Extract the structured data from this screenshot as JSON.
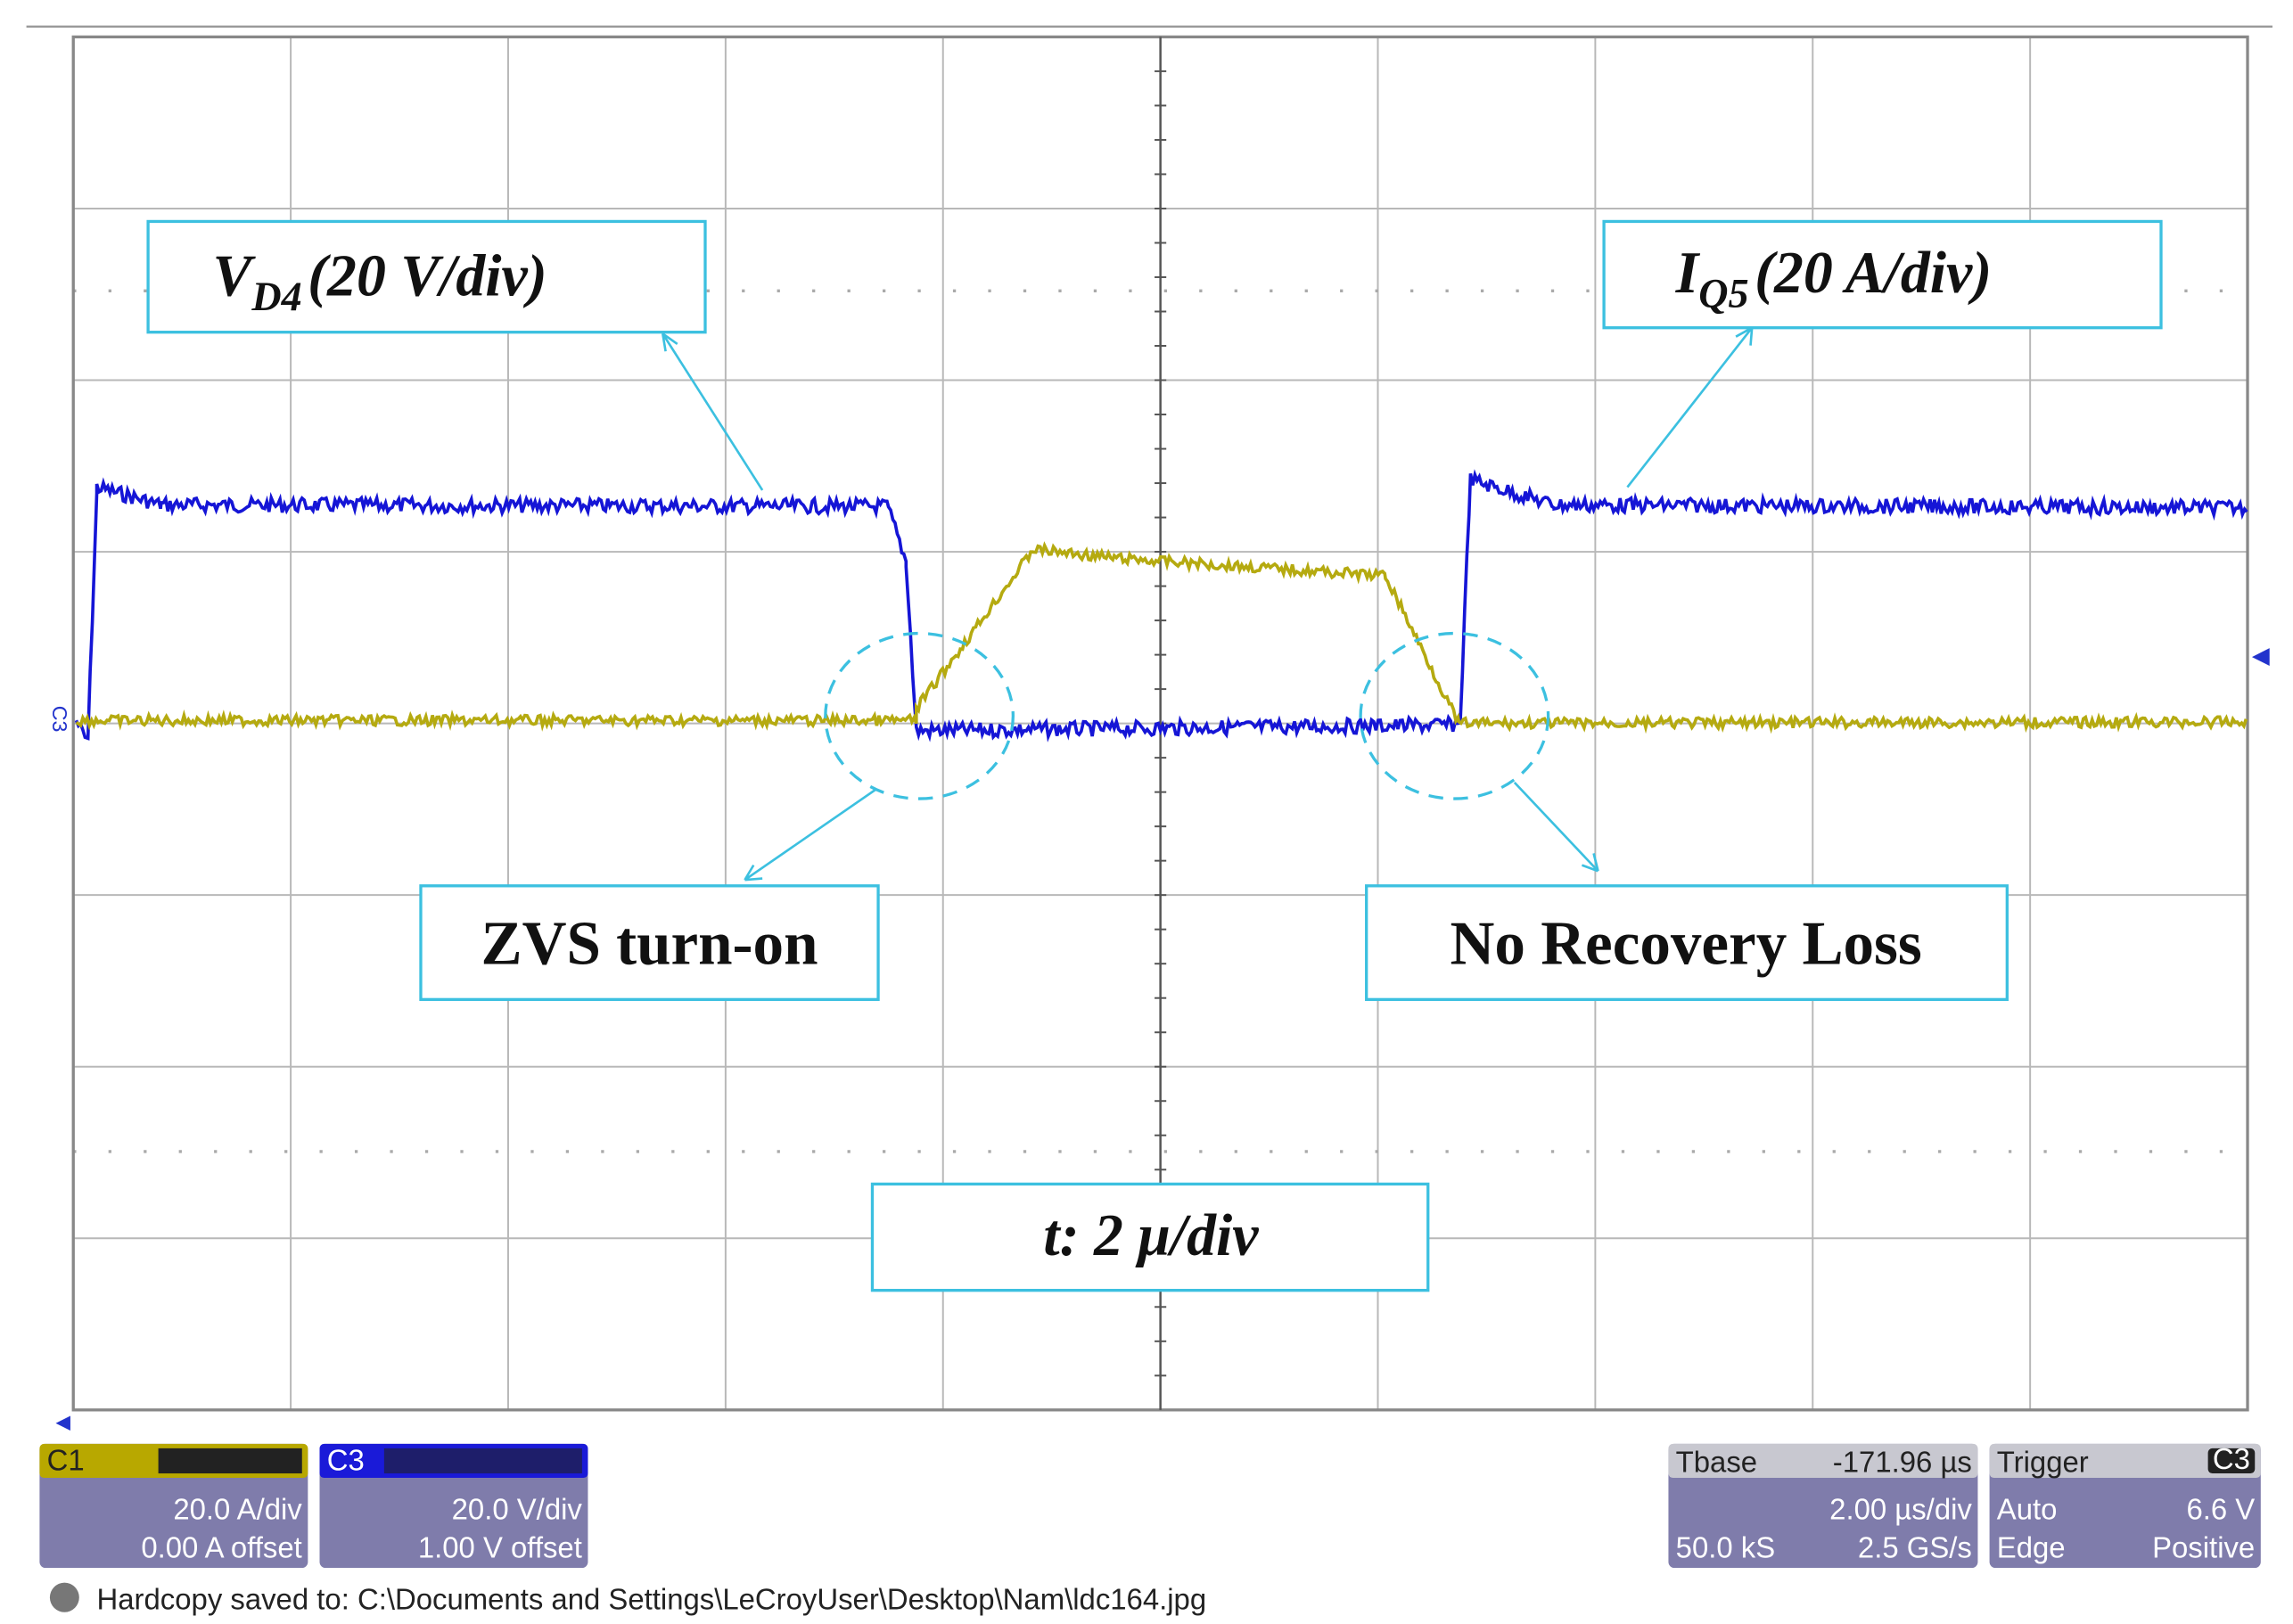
{
  "annotations": {
    "vd4": {
      "main": "V",
      "sub": "D4",
      "scale": "(20 V/div)"
    },
    "iq5": {
      "main": "I",
      "sub": "Q5",
      "scale": "(20 A/div)"
    },
    "zvs": "ZVS turn-on",
    "recovery": "No Recovery Loss",
    "time": "t: 2 μ/div"
  },
  "channel_marker": "C3",
  "panels": {
    "c1": {
      "name": "C1",
      "scale": "20.0 A/div",
      "offset": "0.00 A offset"
    },
    "c3": {
      "name": "C3",
      "scale": "20.0 V/div",
      "offset": "1.00 V offset"
    },
    "timebase": {
      "label": "Tbase",
      "delay": "-171.96 µs",
      "scale": "2.00 µs/div",
      "points": "50.0 kS",
      "rate": "2.5 GS/s"
    },
    "trigger": {
      "label": "Trigger",
      "source": "C3",
      "mode": "Auto",
      "level": "6.6 V",
      "type": "Edge",
      "slope": "Positive"
    }
  },
  "footer": "Hardcopy saved to: C:\\Documents and Settings\\LeCroyUser\\Desktop\\Nam\\ldc164.jpg"
}
